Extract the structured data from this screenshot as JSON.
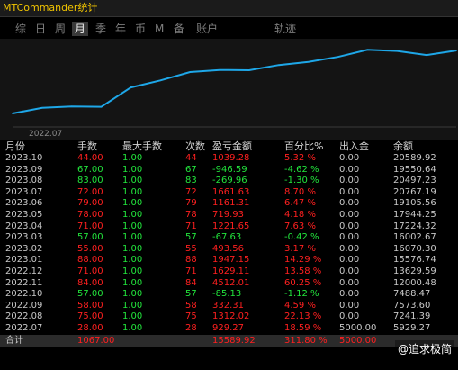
{
  "app": {
    "title": "MTCommander统计"
  },
  "tabs": [
    {
      "key": "tab-day-summary",
      "label": "综",
      "active": false
    },
    {
      "key": "tab-day",
      "label": "日",
      "active": false
    },
    {
      "key": "tab-week",
      "label": "周",
      "active": false
    },
    {
      "key": "tab-month",
      "label": "月",
      "active": true
    },
    {
      "key": "tab-quarter",
      "label": "季",
      "active": false
    },
    {
      "key": "tab-year",
      "label": "年",
      "active": false
    },
    {
      "key": "tab-currency",
      "label": "币",
      "active": false
    },
    {
      "key": "tab-m",
      "label": "M",
      "active": false
    },
    {
      "key": "tab-note",
      "label": "备",
      "active": false
    },
    {
      "key": "tab-account",
      "label": "账户",
      "active": false
    },
    {
      "key": "tab-track",
      "label": "轨迹",
      "active": false
    }
  ],
  "chart_data": {
    "type": "line",
    "x": [
      "2022.07",
      "2022.08",
      "2022.09",
      "2022.10",
      "2022.11",
      "2022.12",
      "2023.01",
      "2023.02",
      "2023.03",
      "2023.04",
      "2023.05",
      "2023.06",
      "2023.07",
      "2023.08",
      "2023.09",
      "2023.10"
    ],
    "series": [
      {
        "values": [
          5929.27,
          7241.39,
          7573.6,
          7488.47,
          12000.48,
          13629.59,
          15576.74,
          16070.3,
          16002.67,
          17224.32,
          17944.25,
          19105.56,
          20767.19,
          20497.23,
          19550.64,
          20589.92
        ]
      }
    ],
    "x_tick_labels": [
      "2022.07"
    ],
    "line_color": "#1ea7e8",
    "ylim": [
      3000,
      22500
    ]
  },
  "table": {
    "headers": [
      "月份",
      "手数",
      "最大手数",
      "次数",
      "盈亏金额",
      "百分比%",
      "出入金",
      "余额"
    ],
    "rows": [
      {
        "month": "2023.10",
        "lots": "44.00",
        "max_lots": "1.00",
        "count": "44",
        "pnl": "1039.28",
        "pct": "5.32 %",
        "flow": "0.00",
        "balance": "20589.92",
        "tone": "red"
      },
      {
        "month": "2023.09",
        "lots": "67.00",
        "max_lots": "1.00",
        "count": "67",
        "pnl": "-946.59",
        "pct": "-4.62 %",
        "flow": "0.00",
        "balance": "19550.64",
        "tone": "green"
      },
      {
        "month": "2023.08",
        "lots": "83.00",
        "max_lots": "1.00",
        "count": "83",
        "pnl": "-269.96",
        "pct": "-1.30 %",
        "flow": "0.00",
        "balance": "20497.23",
        "tone": "green"
      },
      {
        "month": "2023.07",
        "lots": "72.00",
        "max_lots": "1.00",
        "count": "72",
        "pnl": "1661.63",
        "pct": "8.70 %",
        "flow": "0.00",
        "balance": "20767.19",
        "tone": "red"
      },
      {
        "month": "2023.06",
        "lots": "79.00",
        "max_lots": "1.00",
        "count": "79",
        "pnl": "1161.31",
        "pct": "6.47 %",
        "flow": "0.00",
        "balance": "19105.56",
        "tone": "red"
      },
      {
        "month": "2023.05",
        "lots": "78.00",
        "max_lots": "1.00",
        "count": "78",
        "pnl": "719.93",
        "pct": "4.18 %",
        "flow": "0.00",
        "balance": "17944.25",
        "tone": "red"
      },
      {
        "month": "2023.04",
        "lots": "71.00",
        "max_lots": "1.00",
        "count": "71",
        "pnl": "1221.65",
        "pct": "7.63 %",
        "flow": "0.00",
        "balance": "17224.32",
        "tone": "red"
      },
      {
        "month": "2023.03",
        "lots": "57.00",
        "max_lots": "1.00",
        "count": "57",
        "pnl": "-67.63",
        "pct": "-0.42 %",
        "flow": "0.00",
        "balance": "16002.67",
        "tone": "green"
      },
      {
        "month": "2023.02",
        "lots": "55.00",
        "max_lots": "1.00",
        "count": "55",
        "pnl": "493.56",
        "pct": "3.17 %",
        "flow": "0.00",
        "balance": "16070.30",
        "tone": "red"
      },
      {
        "month": "2023.01",
        "lots": "88.00",
        "max_lots": "1.00",
        "count": "88",
        "pnl": "1947.15",
        "pct": "14.29 %",
        "flow": "0.00",
        "balance": "15576.74",
        "tone": "red"
      },
      {
        "month": "2022.12",
        "lots": "71.00",
        "max_lots": "1.00",
        "count": "71",
        "pnl": "1629.11",
        "pct": "13.58 %",
        "flow": "0.00",
        "balance": "13629.59",
        "tone": "red"
      },
      {
        "month": "2022.11",
        "lots": "84.00",
        "max_lots": "1.00",
        "count": "84",
        "pnl": "4512.01",
        "pct": "60.25 %",
        "flow": "0.00",
        "balance": "12000.48",
        "tone": "red"
      },
      {
        "month": "2022.10",
        "lots": "57.00",
        "max_lots": "1.00",
        "count": "57",
        "pnl": "-85.13",
        "pct": "-1.12 %",
        "flow": "0.00",
        "balance": "7488.47",
        "tone": "green"
      },
      {
        "month": "2022.09",
        "lots": "58.00",
        "max_lots": "1.00",
        "count": "58",
        "pnl": "332.31",
        "pct": "4.59 %",
        "flow": "0.00",
        "balance": "7573.60",
        "tone": "red"
      },
      {
        "month": "2022.08",
        "lots": "75.00",
        "max_lots": "1.00",
        "count": "75",
        "pnl": "1312.02",
        "pct": "22.13 %",
        "flow": "0.00",
        "balance": "7241.39",
        "tone": "red"
      },
      {
        "month": "2022.07",
        "lots": "28.00",
        "max_lots": "1.00",
        "count": "28",
        "pnl": "929.27",
        "pct": "18.59 %",
        "flow": "5000.00",
        "balance": "5929.27",
        "tone": "red"
      }
    ],
    "total": {
      "label": "合计",
      "lots": "1067.00",
      "pnl": "15589.92",
      "pct": "311.80 %",
      "flow": "5000.00"
    }
  },
  "watermark": "@追求极简",
  "colors": {
    "profit": "#ff2020",
    "loss": "#22e43c",
    "title": "#f2c500",
    "line": "#1ea7e8"
  }
}
